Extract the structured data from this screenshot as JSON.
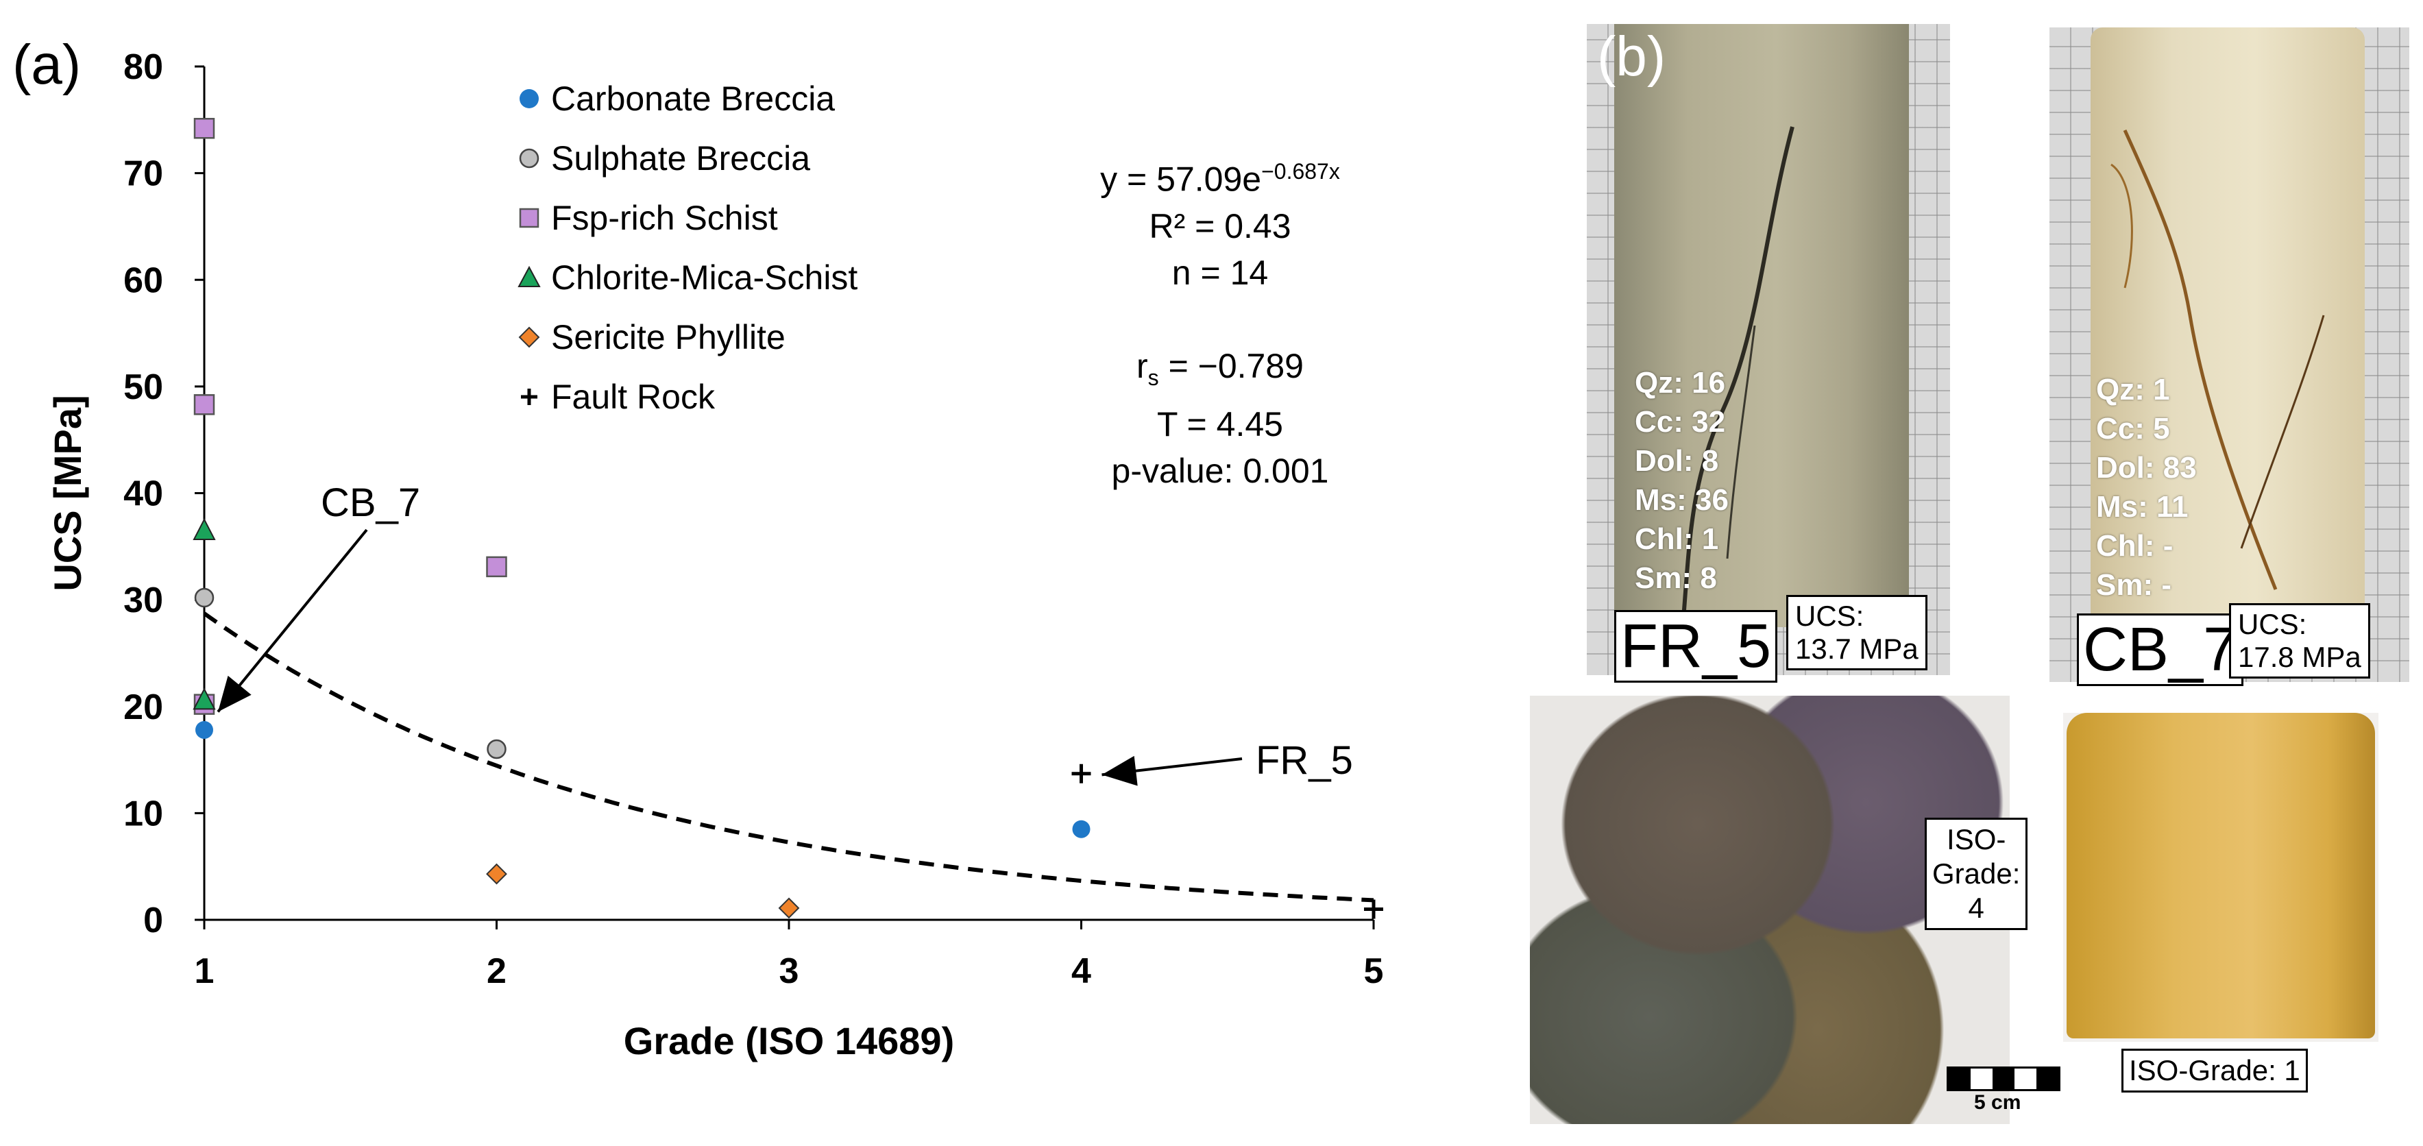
{
  "panel_a": {
    "letter": "(a)",
    "equation": {
      "y": "y = 57.09e",
      "exponent": "−0.687x",
      "r2": "R² = 0.43",
      "n": "n = 14"
    },
    "stats": {
      "rs_main": "r",
      "rs_sub": "s",
      "rs_value": " = −0.789",
      "t": "T = 4.45",
      "p": "p-value: 0.001"
    },
    "annotations": [
      {
        "text": "CB_7"
      },
      {
        "text": "FR_5"
      }
    ]
  },
  "chart_data": {
    "type": "scatter",
    "xlabel": "Grade (ISO 14689)",
    "ylabel": "UCS [MPa]",
    "xlim": [
      1,
      5
    ],
    "ylim": [
      0,
      80
    ],
    "x_ticks": [
      1,
      2,
      3,
      4,
      5
    ],
    "y_ticks": [
      0,
      10,
      20,
      30,
      40,
      50,
      60,
      70,
      80
    ],
    "grid": false,
    "legend_position": "top-center",
    "series": [
      {
        "name": "Carbonate Breccia",
        "marker": "circle",
        "color": "#1f78c8",
        "points": [
          {
            "x": 1,
            "y": 17.8
          },
          {
            "x": 4,
            "y": 8.5
          }
        ]
      },
      {
        "name": "Sulphate Breccia",
        "marker": "circle",
        "color": "#bfbfbf",
        "points": [
          {
            "x": 1,
            "y": 30.2
          },
          {
            "x": 2,
            "y": 16.0
          }
        ]
      },
      {
        "name": "Fsp-rich Schist",
        "marker": "square",
        "color": "#c38fd8",
        "points": [
          {
            "x": 1,
            "y": 74.2
          },
          {
            "x": 1,
            "y": 48.3
          },
          {
            "x": 1,
            "y": 20.2
          },
          {
            "x": 2,
            "y": 33.1
          }
        ]
      },
      {
        "name": "Chlorite-Mica-Schist",
        "marker": "triangle",
        "color": "#1aa35a",
        "points": [
          {
            "x": 1,
            "y": 36.5
          },
          {
            "x": 1,
            "y": 20.6
          }
        ]
      },
      {
        "name": "Sericite Phyllite",
        "marker": "diamond",
        "color": "#f0832a",
        "points": [
          {
            "x": 2,
            "y": 4.3
          },
          {
            "x": 3,
            "y": 1.1
          }
        ]
      },
      {
        "name": "Fault Rock",
        "marker": "plus",
        "color": "#000000",
        "points": [
          {
            "x": 4,
            "y": 13.7
          },
          {
            "x": 5,
            "y": 1.0
          }
        ]
      }
    ],
    "trendline": {
      "type": "exponential",
      "a": 57.09,
      "b": -0.687,
      "style": "dashed",
      "color": "#000000"
    }
  },
  "panel_b": {
    "letter": "(b)",
    "fr5": {
      "sample": "FR_5",
      "minerals": [
        "Qz: 16",
        "Cc: 32",
        "Dol: 8",
        "Ms: 36",
        "Chl: 1",
        "Sm: 8"
      ],
      "ucs_label": "UCS:",
      "ucs_value": "13.7 MPa"
    },
    "cb7": {
      "sample": "CB_7",
      "minerals": [
        "Qz: 1",
        "Cc: 5",
        "Dol: 83",
        "Ms: 11",
        "Chl: -",
        "Sm: -"
      ],
      "ucs_label": "UCS:",
      "ucs_value": "17.8 MPa"
    },
    "rocks_grade": {
      "line1": "ISO-",
      "line2": "Grade:",
      "line3": "4"
    },
    "scale_label": "5 cm",
    "cylinder_grade": "ISO-Grade: 1"
  }
}
